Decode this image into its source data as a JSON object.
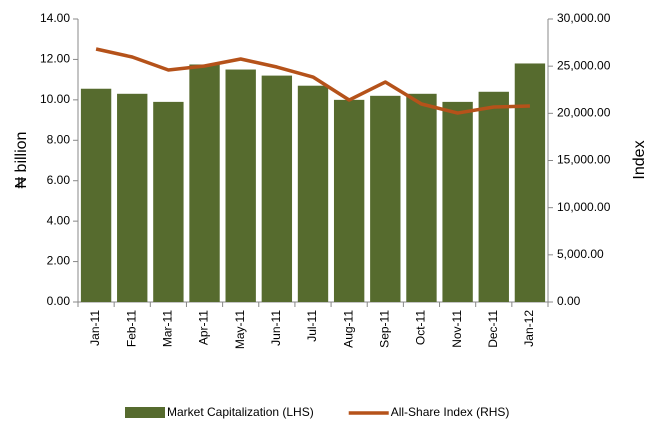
{
  "chart_data": {
    "type": "bar",
    "categories": [
      "Jan-11",
      "Feb-11",
      "Mar-11",
      "Apr-11",
      "May-11",
      "Jun-11",
      "Jul-11",
      "Aug-11",
      "Sep-11",
      "Oct-11",
      "Nov-11",
      "Dec-11",
      "Jan-12"
    ],
    "y_label": "₦ billion",
    "y2_label": "Index",
    "series": [
      {
        "name": "Market Capitalization (LHS)",
        "type": "bar",
        "color": "#566b2e",
        "values": [
          10.55,
          10.3,
          9.9,
          11.75,
          11.5,
          11.2,
          10.7,
          10.0,
          10.2,
          10.3,
          9.9,
          10.4,
          11.8
        ]
      },
      {
        "name": "All-Share Index (RHS)",
        "type": "line",
        "axis": "y2",
        "color": "#b5521a",
        "values": [
          26820,
          25970,
          24590,
          25020,
          25760,
          24910,
          23850,
          21410,
          23320,
          20990,
          20030,
          20670,
          20780
        ]
      }
    ],
    "ylim": [
      0,
      14
    ],
    "yticks": [
      {
        "value": 0,
        "label": "0.00"
      },
      {
        "value": 2,
        "label": "2.00"
      },
      {
        "value": 4,
        "label": "4.00"
      },
      {
        "value": 6,
        "label": "6.00"
      },
      {
        "value": 8,
        "label": "8.00"
      },
      {
        "value": 10,
        "label": "10.00"
      },
      {
        "value": 12,
        "label": "12.00"
      },
      {
        "value": 14,
        "label": "14.00"
      }
    ],
    "y2lim": [
      0,
      30000
    ],
    "y2ticks": [
      {
        "value": 0,
        "label": "0.00"
      },
      {
        "value": 5000,
        "label": "5,000.00"
      },
      {
        "value": 10000,
        "label": "10,000.00"
      },
      {
        "value": 15000,
        "label": "15,000.00"
      },
      {
        "value": 20000,
        "label": "20,000.00"
      },
      {
        "value": 25000,
        "label": "25,000.00"
      },
      {
        "value": 30000,
        "label": "30,000.00"
      }
    ],
    "legend": "bottom"
  }
}
